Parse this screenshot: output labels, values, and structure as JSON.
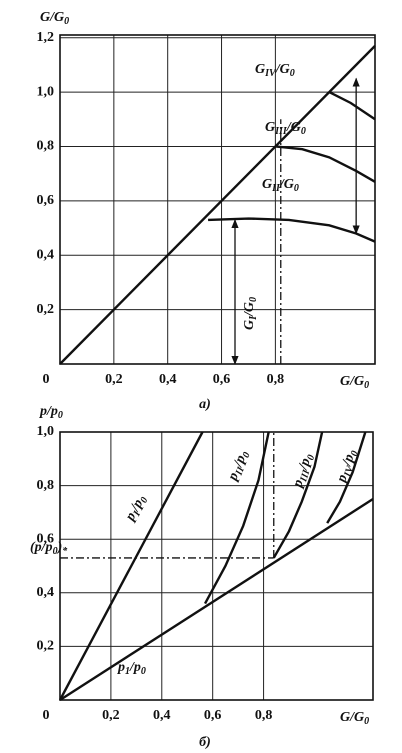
{
  "chart_data": [
    {
      "type": "line",
      "caption": "a)",
      "ylabel": [
        "G/G",
        "0"
      ],
      "xlabel": [
        "G/G",
        "0"
      ],
      "xlim": [
        0,
        1.17
      ],
      "ylim": [
        0,
        1.21
      ],
      "grid": true,
      "color": "#111111",
      "xticks": [
        0,
        {
          "value": 0.2,
          "label": "0,2"
        },
        {
          "value": 0.4,
          "label": "0,4"
        },
        {
          "value": 0.6,
          "label": "0,6"
        },
        {
          "value": 0.8,
          "label": "0,8"
        }
      ],
      "yticks": [
        {
          "value": 0.2,
          "label": "0,2"
        },
        {
          "value": 0.4,
          "label": "0,4"
        },
        {
          "value": 0.6,
          "label": "0,6"
        },
        {
          "value": 0.8,
          "label": "0,8"
        },
        {
          "value": 1.0,
          "label": "1,0"
        },
        {
          "value": 1.2,
          "label": "1,2"
        }
      ],
      "series": [
        {
          "style": "solid",
          "x": [
            0,
            1.17
          ],
          "values": [
            0,
            1.17
          ]
        },
        {
          "style": "solid",
          "x": [
            0.55,
            0.7,
            0.85,
            1.0,
            1.1,
            1.17
          ],
          "values": [
            0.53,
            0.535,
            0.53,
            0.51,
            0.48,
            0.45
          ]
        },
        {
          "style": "solid",
          "x": [
            0.8,
            0.9,
            1.0,
            1.1,
            1.17
          ],
          "values": [
            0.8,
            0.79,
            0.76,
            0.71,
            0.67
          ]
        },
        {
          "style": "solid",
          "x": [
            1.0,
            1.08,
            1.17
          ],
          "values": [
            1.0,
            0.96,
            0.9
          ]
        },
        {
          "style": "dashdot",
          "x": [
            0.82,
            0.82
          ],
          "values": [
            0,
            0.9
          ]
        },
        {
          "style": "arrow",
          "x": [
            0.65,
            0.65
          ],
          "values": [
            0,
            0.53
          ]
        },
        {
          "style": "arrow",
          "x": [
            1.1,
            1.1
          ],
          "values": [
            0.48,
            1.05
          ]
        }
      ],
      "annotations": [
        [
          "G",
          "IV",
          "/G",
          "0"
        ],
        [
          "G",
          "III",
          "/G",
          "0"
        ],
        [
          "G",
          "II",
          "/G",
          "0"
        ],
        [
          "G",
          "I",
          "/G",
          "0"
        ]
      ]
    },
    {
      "type": "line",
      "caption": "б)",
      "ylabel": [
        "p/p",
        "0"
      ],
      "xlabel": [
        "G/G",
        "0"
      ],
      "xlim": [
        0,
        1.23
      ],
      "ylim": [
        0,
        1.0
      ],
      "grid": true,
      "color": "#111111",
      "xticks": [
        0,
        {
          "value": 0.2,
          "label": "0,2"
        },
        {
          "value": 0.4,
          "label": "0,4"
        },
        {
          "value": 0.6,
          "label": "0,6"
        },
        {
          "value": 0.8,
          "label": "0,8"
        }
      ],
      "yticks": [
        {
          "value": 0.2,
          "label": "0,2"
        },
        {
          "value": 0.4,
          "label": "0,4"
        },
        {
          "value": 0.6,
          "label": "0,6"
        },
        {
          "value": 0.8,
          "label": "0,8"
        },
        {
          "value": 1.0,
          "label": "1,0"
        }
      ],
      "series": [
        {
          "style": "solid",
          "x": [
            0,
            1.23
          ],
          "values": [
            0,
            0.75
          ]
        },
        {
          "style": "solid",
          "x": [
            0,
            0.56
          ],
          "values": [
            0,
            1.0
          ]
        },
        {
          "style": "solid",
          "x": [
            0.57,
            0.65,
            0.72,
            0.78,
            0.82
          ],
          "values": [
            0.36,
            0.5,
            0.65,
            0.82,
            1.0
          ]
        },
        {
          "style": "solid",
          "x": [
            0.84,
            0.9,
            0.95,
            1.0,
            1.03
          ],
          "values": [
            0.53,
            0.63,
            0.74,
            0.87,
            1.0
          ]
        },
        {
          "style": "solid",
          "x": [
            1.05,
            1.1,
            1.15,
            1.2
          ],
          "values": [
            0.66,
            0.74,
            0.85,
            1.0
          ]
        },
        {
          "style": "dashdot",
          "x": [
            0,
            0.84
          ],
          "values": [
            0.53,
            0.53
          ]
        },
        {
          "style": "dashdot",
          "x": [
            0.84,
            0.84
          ],
          "values": [
            0.53,
            1.0
          ]
        }
      ],
      "annotations": [
        [
          "(p/p",
          "0",
          ")",
          "*"
        ],
        [
          "p",
          "I",
          "/p",
          "0"
        ],
        [
          "p",
          "II",
          "/p",
          "0"
        ],
        [
          "p",
          "III",
          "/p",
          "0"
        ],
        [
          "p",
          "IV",
          "/p",
          "0"
        ],
        [
          "p",
          "1",
          "/p",
          "0"
        ]
      ]
    }
  ]
}
